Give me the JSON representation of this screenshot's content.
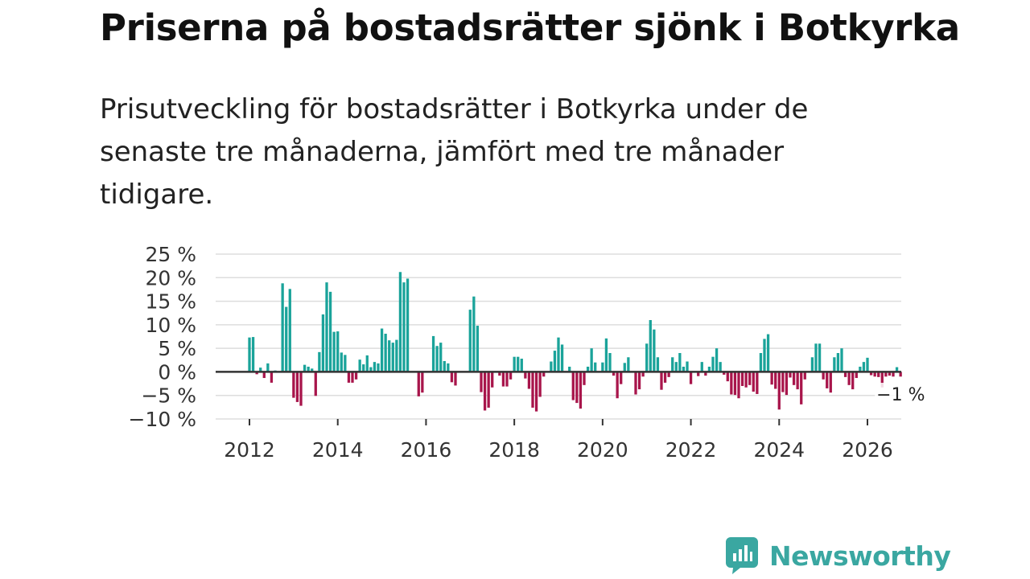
{
  "header": {
    "title": "Priserna på bostadsrätter sjönk i Botkyrka",
    "subtitle": "Prisutveckling för bostadsrätter i Botkyrka under de senaste tre månaderna, jämfört med tre månader tidigare."
  },
  "brand": {
    "name": "Newsworthy",
    "color": "#3aa7a1",
    "icon": "chart-bubble-logo-icon"
  },
  "colors": {
    "positive": "#1aa39a",
    "negative": "#a8154b",
    "grid": "#dddddd",
    "zero_line": "#333333"
  },
  "chart_data": {
    "type": "bar",
    "title": "Priserna på bostadsrätter sjönk i Botkyrka",
    "xlabel": "",
    "ylabel": "",
    "ylim": [
      -10,
      25
    ],
    "yticks": [
      25,
      20,
      15,
      10,
      5,
      0,
      -5,
      -10
    ],
    "ytick_labels": [
      "25 %",
      "20 %",
      "15 %",
      "10 %",
      "5 %",
      "0 %",
      "−5 %",
      "−10 %"
    ],
    "xticks": [
      2012,
      2014,
      2016,
      2018,
      2020,
      2022,
      2024,
      2026
    ],
    "xtick_labels": [
      "2012",
      "2014",
      "2016",
      "2018",
      "2020",
      "2022",
      "2024",
      "2026"
    ],
    "x_start": 2012,
    "period": "monthly",
    "annotation": {
      "label": "−1 %",
      "value": -1
    },
    "values": [
      7.3,
      7.4,
      -0.5,
      0.9,
      -1.3,
      1.8,
      -2.3,
      0.3,
      0,
      18.8,
      13.8,
      17.6,
      -5.5,
      -6.4,
      -7.2,
      1.5,
      1.1,
      0.7,
      -5.1,
      4.2,
      12.2,
      19.0,
      17.0,
      8.5,
      8.6,
      4.1,
      3.6,
      -2.3,
      -2.3,
      -1.6,
      2.6,
      1.6,
      3.5,
      1.0,
      2.1,
      1.8,
      9.2,
      8.1,
      6.7,
      6.2,
      6.8,
      21.2,
      19.0,
      19.8,
      0,
      0,
      -5.2,
      -4.4,
      0,
      0,
      7.6,
      5.5,
      6.2,
      2.3,
      1.8,
      -2.2,
      -2.9,
      0,
      0,
      0,
      13.2,
      16.0,
      9.8,
      -4.3,
      -8.2,
      -7.6,
      -3.3,
      0,
      -0.8,
      -3.1,
      -3.1,
      -1.6,
      3.2,
      3.2,
      2.8,
      -1.4,
      -3.6,
      -7.6,
      -8.4,
      -5.3,
      -1.0,
      0,
      2.2,
      4.5,
      7.3,
      5.8,
      0,
      1.1,
      -6.0,
      -6.6,
      -7.8,
      -2.8,
      1.1,
      5.0,
      2.0,
      0,
      2.0,
      7.1,
      4.0,
      -0.8,
      -5.6,
      -2.6,
      1.9,
      3.1,
      0,
      -4.8,
      -3.7,
      -1.0,
      6.0,
      11.0,
      9.0,
      3.1,
      -3.8,
      -2.3,
      -1.1,
      3.1,
      2.1,
      4.0,
      1.1,
      2.2,
      -2.6,
      0,
      -0.9,
      2.1,
      -0.8,
      1.1,
      3.2,
      5.0,
      2.1,
      -0.6,
      -2.0,
      -4.8,
      -4.9,
      -5.6,
      -3.0,
      -3.3,
      -2.8,
      -4.2,
      -4.7,
      4.0,
      7.0,
      8.0,
      -2.7,
      -3.6,
      -8.0,
      -4.3,
      -4.9,
      -1.2,
      -2.8,
      -3.7,
      -6.9,
      -1.6,
      0,
      3.1,
      6.0,
      6.0,
      -1.6,
      -3.5,
      -4.4,
      3.1,
      4.0,
      5.0,
      -1.1,
      -2.8,
      -3.7,
      -1.3,
      1.1,
      2.1,
      3.0,
      -0.7,
      -1.0,
      -1.1,
      -3.3,
      -1.0,
      -0.8,
      -1.0,
      1.0,
      -1.0
    ]
  }
}
